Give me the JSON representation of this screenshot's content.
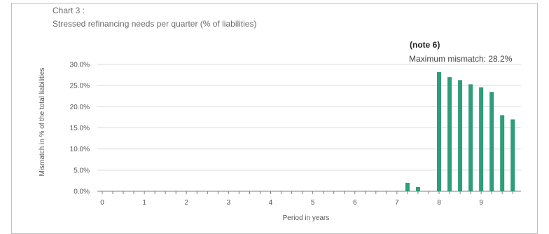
{
  "chart_data": {
    "type": "bar",
    "label": "Chart 3 :",
    "title": "Stressed refinancing needs per quarter  (% of liabilities)",
    "note": "(note 6)",
    "annotation": "Maximum mismatch: 28.2%",
    "xlabel": "Period in years",
    "ylabel": "Mismatch in % of the total liabilities",
    "ylim": [
      0,
      30
    ],
    "yticks": [
      "0.0%",
      "5.0%",
      "10.0%",
      "15.0%",
      "20.0%",
      "25.0%",
      "30.0%"
    ],
    "xticks": [
      "0",
      "1",
      "2",
      "3",
      "4",
      "5",
      "6",
      "7",
      "8",
      "9"
    ],
    "xlim": [
      0,
      10
    ],
    "bar_color": "#2e9e7a",
    "grid": "horizontal",
    "bars": [
      {
        "x": 7.25,
        "value": 2.0
      },
      {
        "x": 7.5,
        "value": 1.0
      },
      {
        "x": 8.0,
        "value": 28.2
      },
      {
        "x": 8.25,
        "value": 27.0
      },
      {
        "x": 8.5,
        "value": 26.3
      },
      {
        "x": 8.75,
        "value": 25.3
      },
      {
        "x": 9.0,
        "value": 24.6
      },
      {
        "x": 9.25,
        "value": 23.5
      },
      {
        "x": 9.5,
        "value": 18.0
      },
      {
        "x": 9.75,
        "value": 17.0
      }
    ]
  }
}
